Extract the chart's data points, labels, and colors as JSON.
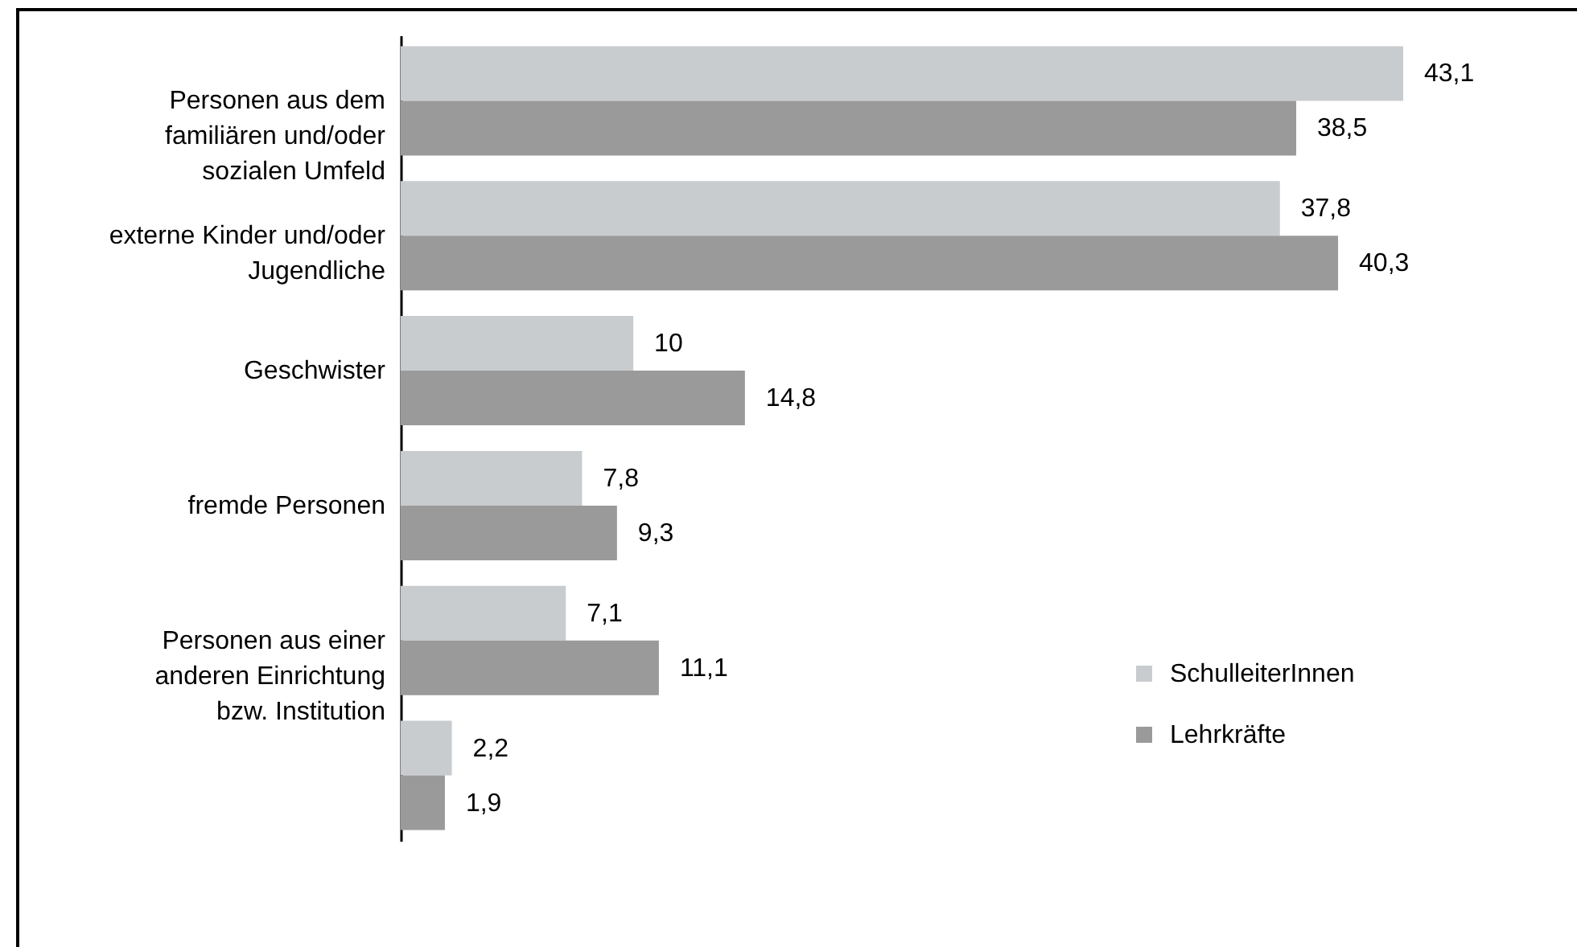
{
  "chart_data": {
    "type": "bar",
    "orientation": "horizontal",
    "categories": [
      "Personen aus dem familiären und/oder sozialen Umfeld",
      "externe Kinder und/oder Jugendliche",
      "Geschwister",
      "fremde Personen",
      "Personen aus einer anderen Einrichtung bzw. Institution",
      null
    ],
    "series": [
      {
        "name": "SchulleiterInnen",
        "color": "#c9cccf",
        "values": [
          43.1,
          37.8,
          10,
          7.8,
          7.1,
          2.2
        ],
        "value_labels": [
          "43,1",
          "37,8",
          "10",
          "7,8",
          "7,1",
          "2,2"
        ]
      },
      {
        "name": "Lehrkräfte",
        "color": "#9a9a9a",
        "values": [
          38.5,
          40.3,
          14.8,
          9.3,
          11.1,
          1.9
        ],
        "value_labels": [
          "38,5",
          "40,3",
          "14,8",
          "9,3",
          "11,1",
          "1,9"
        ]
      }
    ],
    "legend": "bottom right"
  }
}
